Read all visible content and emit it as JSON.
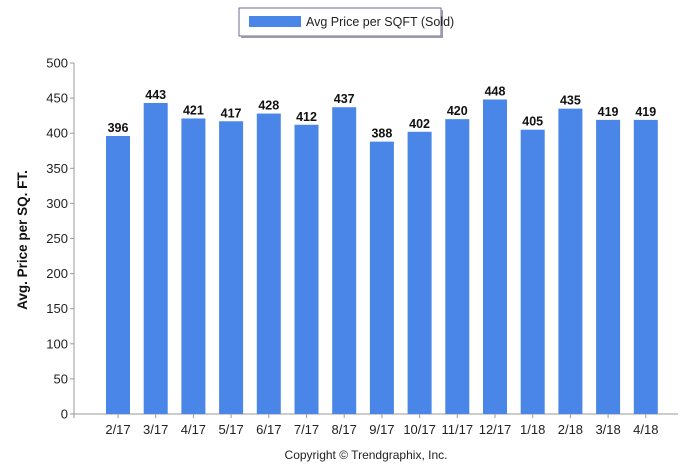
{
  "chart_data": {
    "type": "bar",
    "categories": [
      "2/17",
      "3/17",
      "4/17",
      "5/17",
      "6/17",
      "7/17",
      "8/17",
      "9/17",
      "10/17",
      "11/17",
      "12/17",
      "1/18",
      "2/18",
      "3/18",
      "4/18"
    ],
    "series": [
      {
        "name": "Avg Price per SQFT (Sold)",
        "values": [
          396,
          443,
          421,
          417,
          428,
          412,
          437,
          388,
          402,
          420,
          448,
          405,
          435,
          419,
          419
        ],
        "color": "#4a86e8"
      }
    ],
    "ylabel": "Avg. Price per SQ. FT.",
    "xlabel": "",
    "ylim": [
      0,
      500
    ],
    "yticks": [
      0,
      50,
      100,
      150,
      200,
      250,
      300,
      350,
      400,
      450,
      500
    ],
    "grid": false,
    "legend_position": "top-center"
  },
  "footer": {
    "text": "Copyright © Trendgraphix, Inc."
  }
}
